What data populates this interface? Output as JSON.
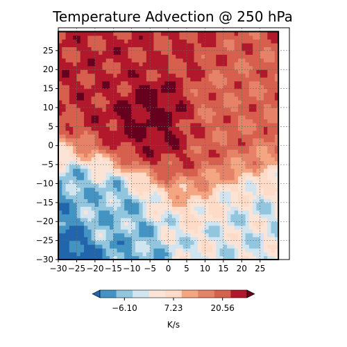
{
  "chart_data": {
    "type": "heatmap",
    "title": "Temperature Advection @ 250 hPa",
    "xlabel": "",
    "ylabel": "",
    "xlim": [
      -30,
      33
    ],
    "ylim": [
      -30,
      31
    ],
    "x_ticks": [
      -30,
      -25,
      -20,
      -15,
      -10,
      -5,
      0,
      5,
      10,
      15,
      20,
      25
    ],
    "y_ticks": [
      -30,
      -25,
      -20,
      -15,
      -10,
      -5,
      0,
      5,
      10,
      15,
      20,
      25
    ],
    "grid": true,
    "domain_box": {
      "x": [
        -30,
        30
      ],
      "y": [
        -30,
        30
      ]
    },
    "colorbar": {
      "label": "K/s",
      "orientation": "horizontal",
      "ticks": [
        "-6.10",
        "7.23",
        "20.56"
      ],
      "colors": [
        "#2166ac",
        "#4393c3",
        "#92c5de",
        "#d1e5f0",
        "#fbe3d6",
        "#fddbc7",
        "#f4a582",
        "#e58268",
        "#d6604d",
        "#b2182b",
        "#67001f"
      ],
      "extend": "both"
    },
    "field_description_points": [
      {
        "x": -5,
        "y": 11,
        "value": 22
      },
      {
        "x": -15,
        "y": 18,
        "value": 18
      },
      {
        "x": 0,
        "y": 23,
        "value": 17
      },
      {
        "x": 15,
        "y": 12,
        "value": 14
      },
      {
        "x": -27,
        "y": -27,
        "value": -8
      },
      {
        "x": -20,
        "y": -20,
        "value": -2
      },
      {
        "x": 25,
        "y": -25,
        "value": 1
      }
    ]
  }
}
